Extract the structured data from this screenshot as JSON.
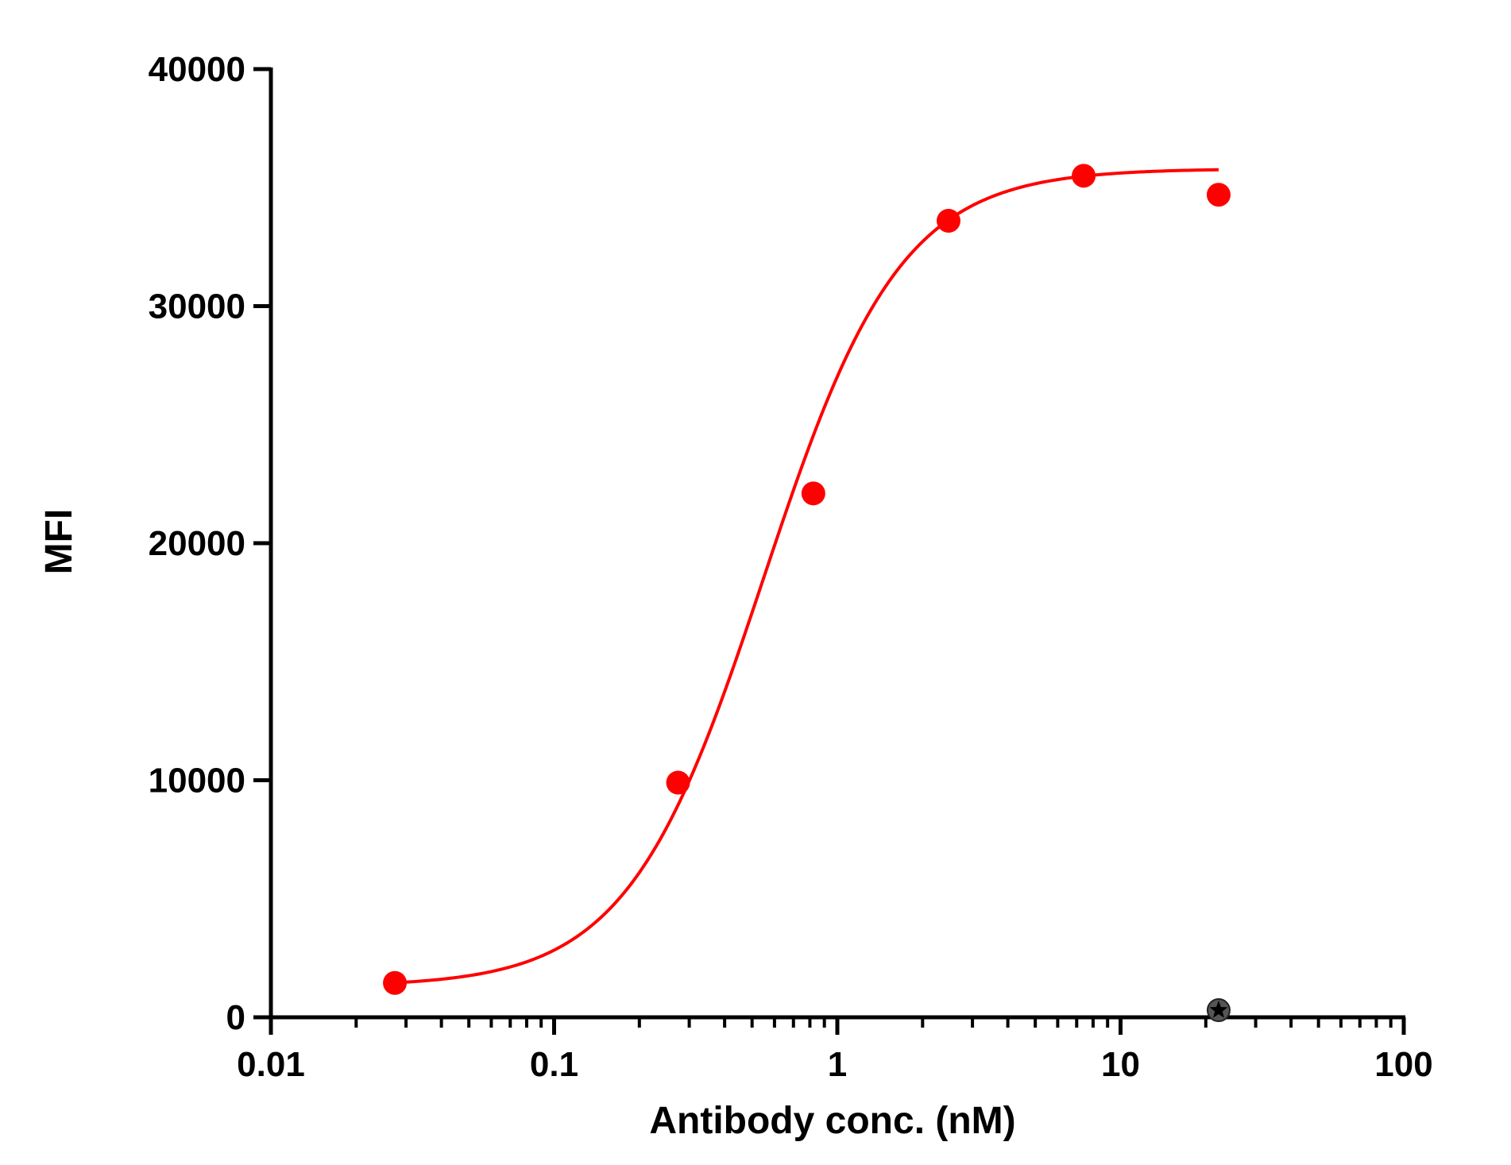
{
  "chart_data": {
    "type": "scatter",
    "xlabel": "Antibody conc. (nM)",
    "ylabel": "MFI",
    "x_scale": "log",
    "xlim": [
      0.01,
      100
    ],
    "ylim": [
      0,
      40000
    ],
    "x_ticks": [
      0.01,
      0.1,
      1,
      10,
      100
    ],
    "x_tick_labels": [
      "0.01",
      "0.1",
      "1",
      "10",
      "100"
    ],
    "y_ticks": [
      0,
      10000,
      20000,
      30000,
      40000
    ],
    "y_tick_labels": [
      "0",
      "10000",
      "20000",
      "30000",
      "40000"
    ],
    "grid": false,
    "legend": "none",
    "series": [
      {
        "marker": "circle",
        "color": "#ff0000",
        "x": [
          0.0274,
          0.274,
          0.823,
          2.47,
          7.41,
          22.2
        ],
        "y": [
          1450,
          9900,
          22100,
          33600,
          35500,
          34700
        ],
        "fit": {
          "model": "4PL",
          "bottom": 1300,
          "top": 35800,
          "ec50": 0.55,
          "hill": 1.8
        }
      },
      {
        "marker": "star",
        "color": "#333333",
        "x": [
          22.2
        ],
        "y": [
          300
        ]
      }
    ]
  }
}
